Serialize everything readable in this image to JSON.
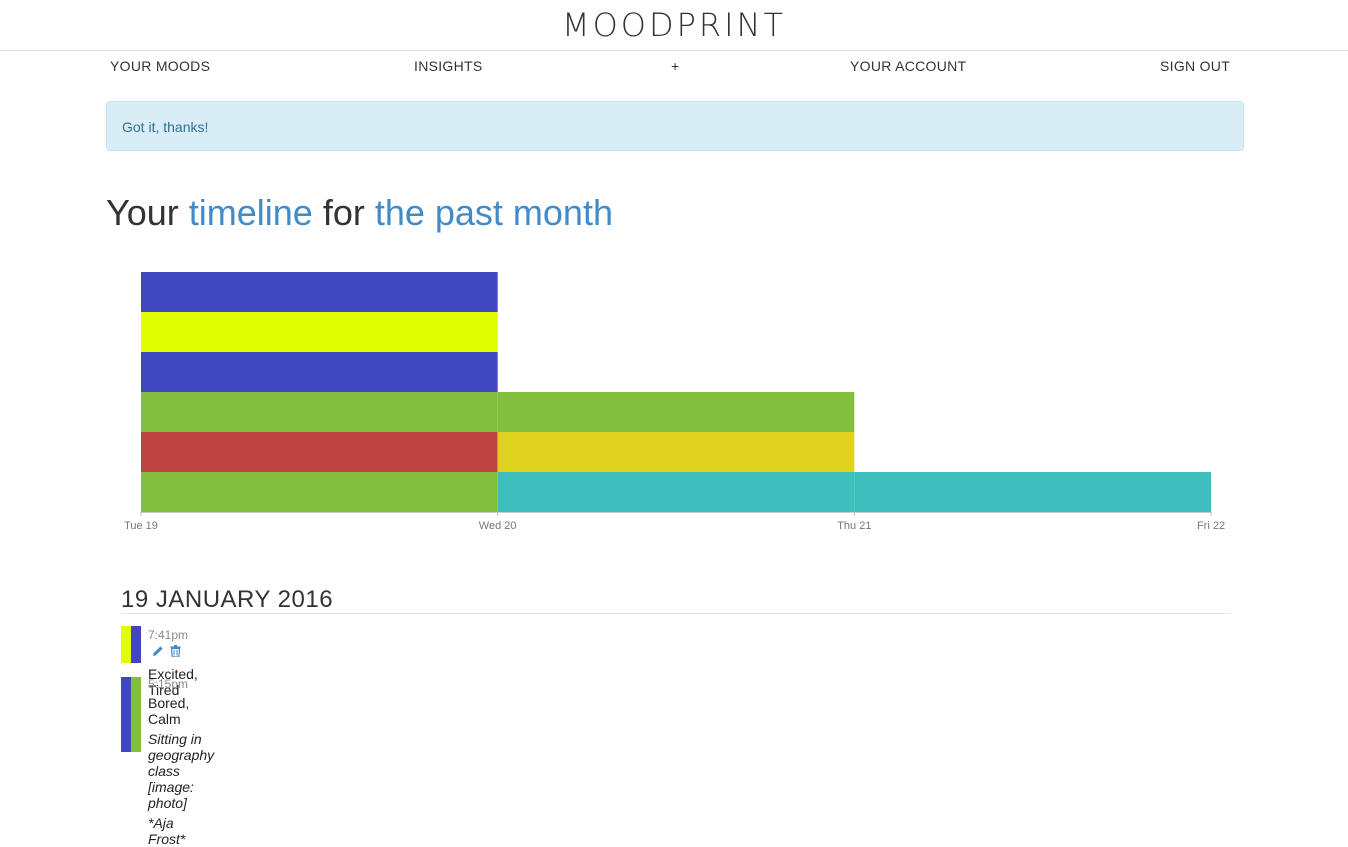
{
  "brand": "MOODPRINT",
  "nav": {
    "moods": "YOUR MOODS",
    "insights": "INSIGHTS",
    "add": "+",
    "account": "YOUR ACCOUNT",
    "signout": "SIGN OUT"
  },
  "alert": {
    "message": "Got it, thanks!"
  },
  "title": {
    "pre": "Your ",
    "accent1": "timeline",
    "mid": " for ",
    "accent2": "the past month"
  },
  "colors": {
    "blue": "#4146c1",
    "yellow": "#e2ff00",
    "green": "#83bf3f",
    "red": "#c04343",
    "mustard": "#e0d320",
    "teal": "#40bfbf",
    "accent": "#428bca"
  },
  "chart_data": {
    "type": "bar",
    "stacked": true,
    "categories": [
      "Tue 19",
      "Wed 20",
      "Thu 21"
    ],
    "x_ticks": [
      "Tue 19",
      "Wed 20",
      "Thu 21",
      "Fri 22"
    ],
    "series": [
      {
        "values": [
          1,
          0,
          0
        ],
        "color": "#83bf3f"
      },
      {
        "values": [
          1,
          0,
          0
        ],
        "color": "#c04343"
      },
      {
        "values": [
          1,
          0,
          0
        ],
        "color": "#83bf3f"
      },
      {
        "values": [
          1,
          0,
          0
        ],
        "color": "#4146c1"
      },
      {
        "values": [
          1,
          0,
          0
        ],
        "color": "#e2ff00"
      },
      {
        "values": [
          1,
          0,
          0
        ],
        "color": "#4146c1"
      },
      {
        "values": [
          0,
          1,
          1
        ],
        "color": "#40bfbf"
      },
      {
        "values": [
          0,
          1,
          0
        ],
        "color": "#e0d320"
      },
      {
        "values": [
          0,
          1,
          0
        ],
        "color": "#83bf3f"
      }
    ],
    "ylim": [
      0,
      6
    ],
    "grid": false,
    "title": "",
    "xlabel": "",
    "ylabel": ""
  },
  "day": {
    "label": "19 JANUARY 2016",
    "entries": [
      {
        "time": "7:41pm",
        "moods": "Excited, Tired",
        "note": "",
        "credit": "",
        "colors": [
          "#e2ff00",
          "#4146c1"
        ]
      },
      {
        "time": "5:15pm",
        "moods": "Bored, Calm",
        "note": "Sitting in geography class [image: photo]",
        "credit": "*Aja Frost*",
        "colors": [
          "#4146c1",
          "#83bf3f"
        ]
      }
    ]
  }
}
